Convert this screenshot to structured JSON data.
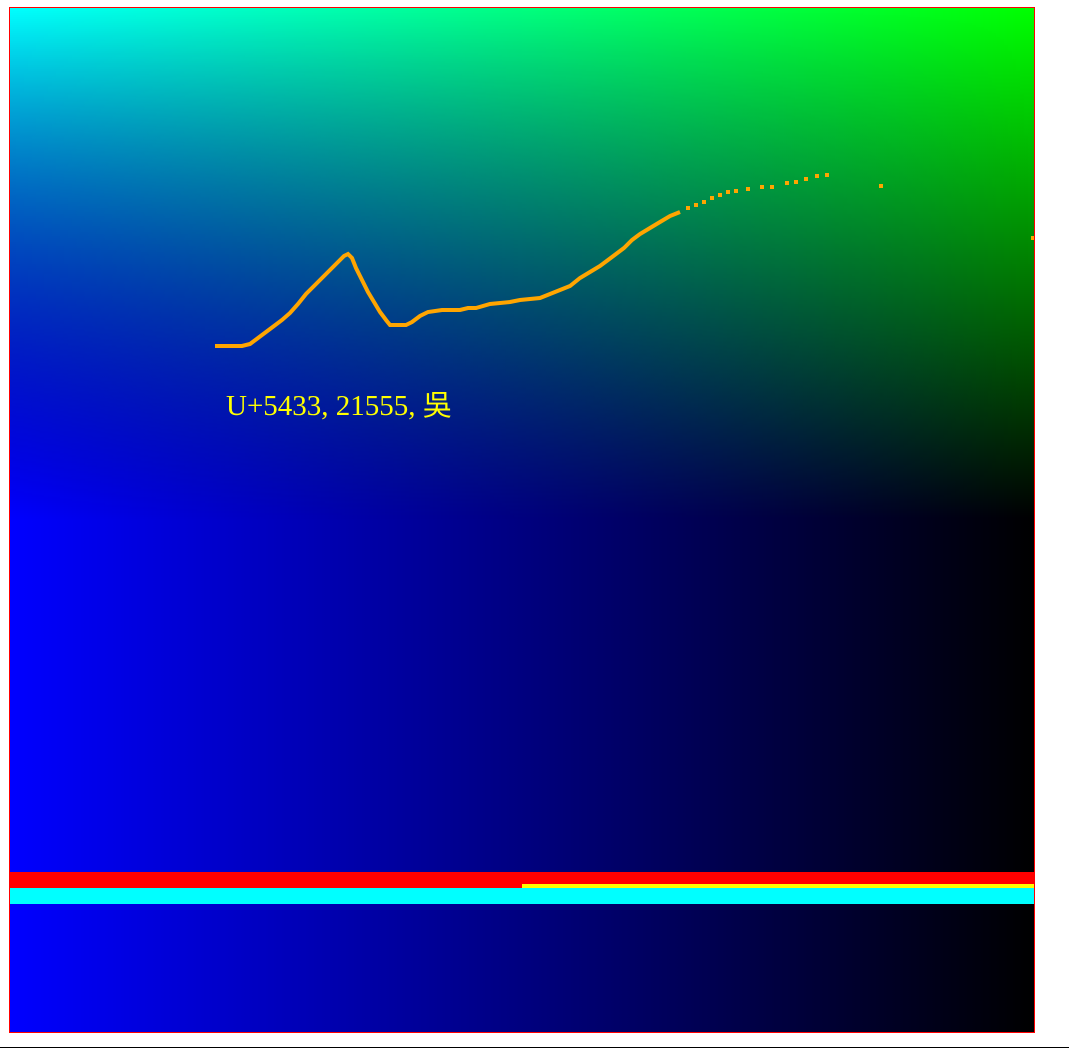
{
  "label": {
    "text": "U+5433, 21555, 吳",
    "color": "#ffff00"
  },
  "colors": {
    "frame": "#ff0000",
    "top_left": "#00ffff",
    "top_right": "#00ff00",
    "mid_left": "#0000ff",
    "mid_right": "#000000",
    "curve": "#ffa500",
    "bar_red": "#ff0000",
    "bar_yellow": "#ffff00",
    "bar_cyan": "#00ffff"
  }
}
